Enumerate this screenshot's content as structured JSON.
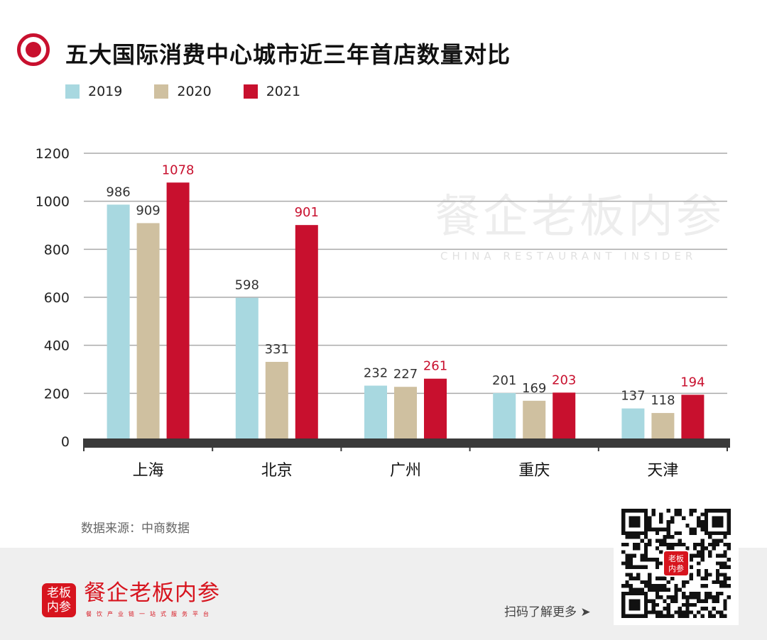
{
  "header": {
    "title": "五大国际消费中心城市近三年首店数量对比"
  },
  "watermark": {
    "main": "餐企老板内参",
    "sub": "CHINA RESTAURANT INSIDER"
  },
  "chart_data": {
    "type": "bar",
    "title": "五大国际消费中心城市近三年首店数量对比",
    "categories": [
      "上海",
      "北京",
      "广州",
      "重庆",
      "天津"
    ],
    "series": [
      {
        "name": "2019",
        "color": "#a8d8e0",
        "label_color": "#333333",
        "values": [
          986,
          598,
          232,
          201,
          137
        ]
      },
      {
        "name": "2020",
        "color": "#cfc0a0",
        "label_color": "#333333",
        "values": [
          909,
          331,
          227,
          169,
          118
        ]
      },
      {
        "name": "2021",
        "color": "#c8102e",
        "label_color": "#c8102e",
        "values": [
          1078,
          901,
          261,
          203,
          194
        ]
      }
    ],
    "yticks": [
      0,
      200,
      400,
      600,
      800,
      1000,
      1200
    ],
    "ylim": [
      0,
      1200
    ],
    "grid": true,
    "legend": "top-left",
    "xlabel": "",
    "ylabel": ""
  },
  "source": "数据来源：中商数据",
  "footer": {
    "logo_text": "老板内参",
    "brand": "餐企老板内参",
    "slogan": "餐饮产业链一站式服务平台",
    "scan": "扫码了解更多 ➤"
  }
}
